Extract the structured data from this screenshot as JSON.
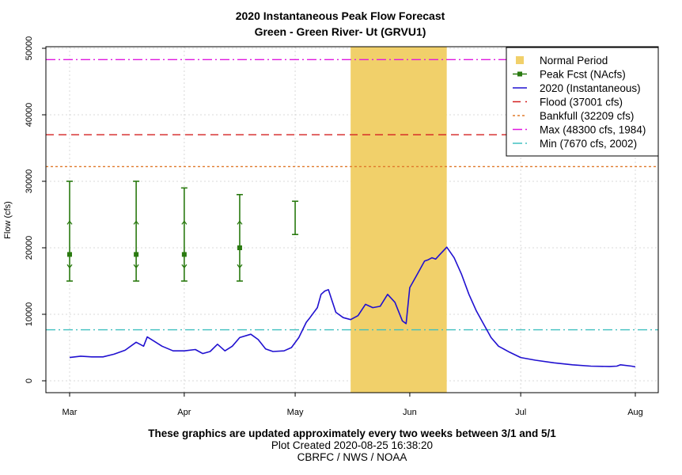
{
  "chart_data": {
    "type": "line",
    "title": "2020 Instantaneous Peak Flow Forecast",
    "subtitle": "Green - Green River- Ut (GRVU1)",
    "ylabel": "Flow (cfs)",
    "xlabel": "",
    "ylim": [
      0,
      50000
    ],
    "xlim": [
      "2020-03-01",
      "2020-08-01"
    ],
    "y_ticks": [
      0,
      10000,
      20000,
      30000,
      40000,
      50000
    ],
    "x_ticks": [
      {
        "date": "2020-03-01",
        "label": "Mar"
      },
      {
        "date": "2020-04-01",
        "label": "Apr"
      },
      {
        "date": "2020-05-01",
        "label": "May"
      },
      {
        "date": "2020-06-01",
        "label": "Jun"
      },
      {
        "date": "2020-07-01",
        "label": "Jul"
      },
      {
        "date": "2020-08-01",
        "label": "Aug"
      }
    ],
    "grid": true,
    "legend_position": "top-right",
    "normal_period": {
      "name": "Normal Period",
      "start": "2020-05-16",
      "end": "2020-06-11",
      "color": "#f1d06a"
    },
    "thresholds": [
      {
        "name": "Flood (37001 cfs)",
        "value": 37001,
        "color": "#d42020",
        "style": "dash"
      },
      {
        "name": "Bankfull (32209 cfs)",
        "value": 32209,
        "color": "#e07a2c",
        "style": "dot"
      },
      {
        "name": "Max (48300 cfs, 1984)",
        "value": 48300,
        "color": "#e018e0",
        "style": "dashdot"
      },
      {
        "name": "Min (7670 cfs, 2002)",
        "value": 7670,
        "color": "#40c0c0",
        "style": "dashdot"
      }
    ],
    "peak_forecasts": {
      "name": "Peak Fcst (NAcfs)",
      "color": "#2a7a10",
      "points": [
        {
          "date": "2020-03-01",
          "low": 15000,
          "p25": 17000,
          "mid": 19000,
          "p75": 24000,
          "high": 30000
        },
        {
          "date": "2020-03-19",
          "low": 15000,
          "p25": 17000,
          "mid": 19000,
          "p75": 24000,
          "high": 30000
        },
        {
          "date": "2020-04-01",
          "low": 15000,
          "p25": 17000,
          "mid": 19000,
          "p75": 24000,
          "high": 29000
        },
        {
          "date": "2020-04-16",
          "low": 15000,
          "p25": 17000,
          "mid": 20000,
          "p75": 24000,
          "high": 28000
        },
        {
          "date": "2020-05-01",
          "low": 22000,
          "high": 27000
        }
      ]
    },
    "series": [
      {
        "name": "2020  (Instantaneous)",
        "color": "#2010d0",
        "x": [
          "2020-03-01",
          "2020-03-04",
          "2020-03-07",
          "2020-03-10",
          "2020-03-13",
          "2020-03-16",
          "2020-03-19",
          "2020-03-21",
          "2020-03-22",
          "2020-03-24",
          "2020-03-26",
          "2020-03-29",
          "2020-04-01",
          "2020-04-04",
          "2020-04-06",
          "2020-04-08",
          "2020-04-10",
          "2020-04-12",
          "2020-04-14",
          "2020-04-16",
          "2020-04-19",
          "2020-04-21",
          "2020-04-23",
          "2020-04-25",
          "2020-04-28",
          "2020-04-30",
          "2020-05-02",
          "2020-05-04",
          "2020-05-05",
          "2020-05-07",
          "2020-05-08",
          "2020-05-09",
          "2020-05-10",
          "2020-05-11",
          "2020-05-12",
          "2020-05-14",
          "2020-05-16",
          "2020-05-18",
          "2020-05-20",
          "2020-05-22",
          "2020-05-24",
          "2020-05-26",
          "2020-05-28",
          "2020-05-30",
          "2020-05-31",
          "2020-06-01",
          "2020-06-03",
          "2020-06-05",
          "2020-06-06",
          "2020-06-07",
          "2020-06-08",
          "2020-06-09",
          "2020-06-11",
          "2020-06-13",
          "2020-06-15",
          "2020-06-17",
          "2020-06-19",
          "2020-06-21",
          "2020-06-23",
          "2020-06-25",
          "2020-06-28",
          "2020-07-01",
          "2020-07-05",
          "2020-07-10",
          "2020-07-15",
          "2020-07-20",
          "2020-07-25",
          "2020-07-27",
          "2020-07-28",
          "2020-07-31",
          "2020-08-01"
        ],
        "y": [
          3500,
          3700,
          3600,
          3600,
          4000,
          4600,
          5800,
          5200,
          6600,
          5900,
          5200,
          4500,
          4500,
          4700,
          4100,
          4400,
          5500,
          4500,
          5200,
          6500,
          7000,
          6200,
          4800,
          4400,
          4500,
          5000,
          6500,
          8800,
          9500,
          11000,
          13000,
          13500,
          13700,
          12000,
          10300,
          9500,
          9200,
          9800,
          11500,
          11000,
          11200,
          13000,
          11800,
          9000,
          8600,
          14000,
          16000,
          18000,
          18200,
          18500,
          18300,
          18900,
          20100,
          18500,
          16000,
          13000,
          10500,
          8500,
          6500,
          5200,
          4300,
          3500,
          3100,
          2700,
          2400,
          2200,
          2150,
          2200,
          2400,
          2200,
          2100
        ]
      }
    ]
  },
  "footer": {
    "line1": "These graphics are updated approximately every two weeks between 3/1 and 5/1",
    "line2": "Plot Created 2020-08-25 16:38:20",
    "line3": "CBRFC / NWS / NOAA"
  }
}
